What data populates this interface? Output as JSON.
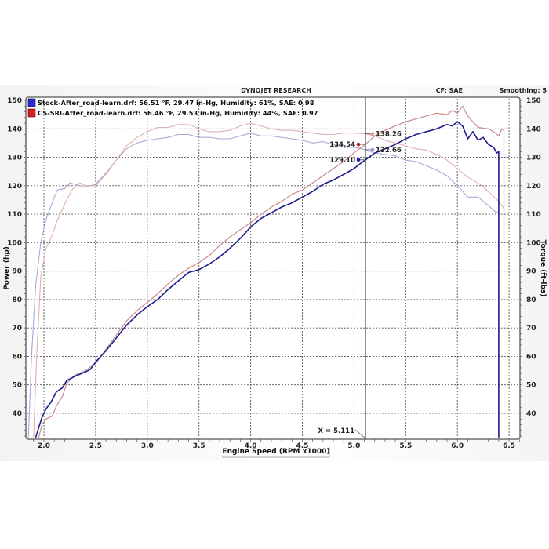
{
  "header": {
    "title": "DYNOJET RESEARCH",
    "cf_label": "CF: SAE",
    "smoothing_label": "Smoothing: 5"
  },
  "legend": [
    {
      "label": "Stock-After_road-learn.drf: 56.51 °F, 29.47 in-Hg, Humidity: 61%, SAE: 0.98",
      "color": "#1a1aa8"
    },
    {
      "label": "CS-SRI-After_road-learn.drf: 56.46 °F, 29.53 in-Hg, Humidity: 44%, SAE: 0.97",
      "color": "#c01818"
    }
  ],
  "cursor": {
    "label": "X = 5.111",
    "x": 5.111,
    "values": [
      {
        "label": "138.26",
        "series": "CS-SRI Torque",
        "y": 138.26,
        "color": "#e89a9a"
      },
      {
        "label": "134.54",
        "series": "CS-SRI Power",
        "y": 134.54,
        "color": "#c01818"
      },
      {
        "label": "132.66",
        "series": "Stock Torque",
        "y": 132.66,
        "color": "#9a9ae8"
      },
      {
        "label": "129.10",
        "series": "Stock Power",
        "y": 129.1,
        "color": "#1a1aa8"
      }
    ]
  },
  "colors": {
    "stock_power": "#1c1c8c",
    "stock_torque": "#a8a8d8",
    "sri_power": "#c88a8a",
    "sri_torque": "#e0b0b0",
    "grid": "#555555",
    "frame": "#555555"
  },
  "chart_data": {
    "type": "line",
    "title": "DYNOJET RESEARCH",
    "xlabel": "Engine Speed (RPM x1000)",
    "ylabel": "Power (hp)",
    "y2label": "Torque (ft-lbs)",
    "xlim": [
      1.83,
      6.63
    ],
    "ylim": [
      31.5,
      151
    ],
    "y2lim": [
      31.5,
      151
    ],
    "x_ticks": [
      "2.0",
      "2.5",
      "3.0",
      "3.5",
      "4.0",
      "4.5",
      "5.0",
      "5.5",
      "6.0",
      "6.5"
    ],
    "y_ticks": [
      "40",
      "50",
      "60",
      "70",
      "80",
      "90",
      "100",
      "110",
      "120",
      "130",
      "140",
      "150"
    ],
    "y2_ticks": [
      "40",
      "50",
      "60",
      "70",
      "80",
      "90",
      "100",
      "110",
      "120",
      "130",
      "140",
      "150"
    ],
    "grid": true,
    "legend_position": "top-left",
    "annotations": [
      "X = 5.111",
      "138.26",
      "134.54",
      "132.66",
      "129.10",
      "CF: SAE",
      "Smoothing: 5"
    ],
    "series": [
      {
        "name": "Stock-After_road-learn Power (hp)",
        "axis": "left",
        "points": [
          [
            1.92,
            31.5
          ],
          [
            1.95,
            35
          ],
          [
            1.98,
            38.5
          ],
          [
            2.02,
            41.5
          ],
          [
            2.07,
            44
          ],
          [
            2.12,
            47.5
          ],
          [
            2.18,
            49
          ],
          [
            2.22,
            51.5
          ],
          [
            2.3,
            53
          ],
          [
            2.4,
            54.5
          ],
          [
            2.45,
            55.5
          ],
          [
            2.5,
            58
          ],
          [
            2.6,
            62
          ],
          [
            2.7,
            66.5
          ],
          [
            2.8,
            71
          ],
          [
            2.9,
            74.5
          ],
          [
            3.0,
            77.5
          ],
          [
            3.1,
            80
          ],
          [
            3.2,
            83.5
          ],
          [
            3.3,
            86.5
          ],
          [
            3.4,
            89.5
          ],
          [
            3.5,
            90.5
          ],
          [
            3.6,
            92.5
          ],
          [
            3.7,
            95
          ],
          [
            3.8,
            98
          ],
          [
            3.9,
            101.5
          ],
          [
            4.0,
            105.5
          ],
          [
            4.1,
            108.5
          ],
          [
            4.2,
            110.5
          ],
          [
            4.3,
            112.5
          ],
          [
            4.4,
            114
          ],
          [
            4.5,
            116
          ],
          [
            4.6,
            118
          ],
          [
            4.7,
            120.5
          ],
          [
            4.8,
            122
          ],
          [
            4.9,
            124
          ],
          [
            5.0,
            126
          ],
          [
            5.05,
            127.5
          ],
          [
            5.111,
            129.1
          ],
          [
            5.2,
            131.5
          ],
          [
            5.3,
            133
          ],
          [
            5.4,
            134.5
          ],
          [
            5.5,
            136.5
          ],
          [
            5.6,
            138
          ],
          [
            5.7,
            139
          ],
          [
            5.8,
            140
          ],
          [
            5.9,
            141.5
          ],
          [
            5.95,
            141
          ],
          [
            6.0,
            142.5
          ],
          [
            6.05,
            141
          ],
          [
            6.1,
            136.5
          ],
          [
            6.15,
            139
          ],
          [
            6.2,
            136
          ],
          [
            6.25,
            137
          ],
          [
            6.3,
            134.5
          ],
          [
            6.35,
            133.5
          ],
          [
            6.38,
            131.5
          ],
          [
            6.4,
            132
          ],
          [
            6.4,
            31.5
          ]
        ]
      },
      {
        "name": "Stock-After_road-learn Torque (ft-lbs)",
        "axis": "right",
        "points": [
          [
            1.85,
            31.5
          ],
          [
            1.88,
            60
          ],
          [
            1.92,
            85
          ],
          [
            1.97,
            100
          ],
          [
            2.02,
            108
          ],
          [
            2.08,
            114
          ],
          [
            2.13,
            118.5
          ],
          [
            2.2,
            119
          ],
          [
            2.25,
            121
          ],
          [
            2.3,
            120.5
          ],
          [
            2.4,
            119.5
          ],
          [
            2.5,
            120.5
          ],
          [
            2.6,
            124.5
          ],
          [
            2.7,
            129
          ],
          [
            2.8,
            133
          ],
          [
            2.9,
            135
          ],
          [
            3.0,
            136
          ],
          [
            3.1,
            136.5
          ],
          [
            3.2,
            137
          ],
          [
            3.3,
            138
          ],
          [
            3.4,
            138
          ],
          [
            3.5,
            137
          ],
          [
            3.6,
            137
          ],
          [
            3.7,
            136.5
          ],
          [
            3.8,
            136.5
          ],
          [
            3.9,
            137.5
          ],
          [
            4.0,
            138.5
          ],
          [
            4.1,
            137.5
          ],
          [
            4.2,
            137.5
          ],
          [
            4.3,
            137
          ],
          [
            4.4,
            136.5
          ],
          [
            4.5,
            136
          ],
          [
            4.6,
            135
          ],
          [
            4.7,
            135.5
          ],
          [
            4.8,
            134.5
          ],
          [
            4.9,
            133.5
          ],
          [
            5.0,
            133.5
          ],
          [
            5.111,
            132.66
          ],
          [
            5.2,
            131.5
          ],
          [
            5.3,
            131
          ],
          [
            5.4,
            130.5
          ],
          [
            5.5,
            129
          ],
          [
            5.6,
            128.5
          ],
          [
            5.7,
            127
          ],
          [
            5.8,
            125.5
          ],
          [
            5.9,
            123.5
          ],
          [
            6.0,
            120
          ],
          [
            6.1,
            116
          ],
          [
            6.2,
            116
          ],
          [
            6.3,
            113
          ],
          [
            6.38,
            110.5
          ],
          [
            6.4,
            111
          ],
          [
            6.4,
            31.5
          ]
        ]
      },
      {
        "name": "CS-SRI-After_road-learn Power (hp)",
        "axis": "left",
        "points": [
          [
            1.95,
            31.5
          ],
          [
            1.98,
            36
          ],
          [
            2.02,
            38
          ],
          [
            2.08,
            39
          ],
          [
            2.12,
            42.5
          ],
          [
            2.18,
            46
          ],
          [
            2.22,
            50.5
          ],
          [
            2.3,
            53.5
          ],
          [
            2.4,
            55
          ],
          [
            2.5,
            57.5
          ],
          [
            2.6,
            62.5
          ],
          [
            2.7,
            67.5
          ],
          [
            2.8,
            72.5
          ],
          [
            2.9,
            76
          ],
          [
            3.0,
            79
          ],
          [
            3.1,
            82
          ],
          [
            3.2,
            85.5
          ],
          [
            3.3,
            88.5
          ],
          [
            3.4,
            91
          ],
          [
            3.5,
            93
          ],
          [
            3.6,
            95.5
          ],
          [
            3.7,
            99
          ],
          [
            3.8,
            102
          ],
          [
            3.9,
            104.5
          ],
          [
            4.0,
            107
          ],
          [
            4.1,
            110
          ],
          [
            4.2,
            112.5
          ],
          [
            4.3,
            114.5
          ],
          [
            4.4,
            117
          ],
          [
            4.5,
            118.5
          ],
          [
            4.6,
            121
          ],
          [
            4.7,
            123.5
          ],
          [
            4.8,
            126
          ],
          [
            4.9,
            128.5
          ],
          [
            5.0,
            131.5
          ],
          [
            5.05,
            133
          ],
          [
            5.111,
            134.54
          ],
          [
            5.2,
            137.5
          ],
          [
            5.3,
            139.5
          ],
          [
            5.4,
            141
          ],
          [
            5.5,
            142.5
          ],
          [
            5.6,
            143.5
          ],
          [
            5.7,
            144.5
          ],
          [
            5.8,
            145.5
          ],
          [
            5.9,
            145
          ],
          [
            5.95,
            146.5
          ],
          [
            6.0,
            145.5
          ],
          [
            6.05,
            148
          ],
          [
            6.1,
            144.5
          ],
          [
            6.15,
            142.5
          ],
          [
            6.2,
            140.5
          ],
          [
            6.3,
            140
          ],
          [
            6.35,
            139
          ],
          [
            6.4,
            137.5
          ],
          [
            6.43,
            140
          ],
          [
            6.45,
            139.5
          ],
          [
            6.45,
            100
          ]
        ]
      },
      {
        "name": "CS-SRI-After_road-learn Torque (ft-lbs)",
        "axis": "right",
        "points": [
          [
            1.9,
            31.5
          ],
          [
            1.93,
            60
          ],
          [
            1.97,
            88
          ],
          [
            2.02,
            98
          ],
          [
            2.08,
            102.5
          ],
          [
            2.12,
            107
          ],
          [
            2.17,
            111
          ],
          [
            2.22,
            115
          ],
          [
            2.28,
            119
          ],
          [
            2.35,
            121
          ],
          [
            2.4,
            120
          ],
          [
            2.5,
            120
          ],
          [
            2.6,
            124
          ],
          [
            2.7,
            129
          ],
          [
            2.8,
            134
          ],
          [
            2.9,
            137
          ],
          [
            3.0,
            139
          ],
          [
            3.1,
            140.5
          ],
          [
            3.2,
            140.5
          ],
          [
            3.3,
            141.5
          ],
          [
            3.4,
            141.5
          ],
          [
            3.5,
            140
          ],
          [
            3.6,
            139
          ],
          [
            3.7,
            139
          ],
          [
            3.8,
            139.5
          ],
          [
            3.9,
            141
          ],
          [
            4.0,
            142
          ],
          [
            4.1,
            141
          ],
          [
            4.2,
            140
          ],
          [
            4.3,
            139.5
          ],
          [
            4.4,
            139.5
          ],
          [
            4.5,
            139
          ],
          [
            4.6,
            138.5
          ],
          [
            4.7,
            138
          ],
          [
            4.8,
            138
          ],
          [
            4.9,
            138.5
          ],
          [
            5.0,
            138.5
          ],
          [
            5.111,
            138.26
          ],
          [
            5.2,
            137.5
          ],
          [
            5.3,
            136
          ],
          [
            5.4,
            135
          ],
          [
            5.5,
            134
          ],
          [
            5.6,
            133
          ],
          [
            5.7,
            132.5
          ],
          [
            5.8,
            131
          ],
          [
            5.9,
            129
          ],
          [
            6.0,
            126
          ],
          [
            6.1,
            123
          ],
          [
            6.2,
            121
          ],
          [
            6.3,
            118
          ],
          [
            6.4,
            114.5
          ],
          [
            6.45,
            112
          ],
          [
            6.45,
            106
          ]
        ]
      }
    ]
  }
}
